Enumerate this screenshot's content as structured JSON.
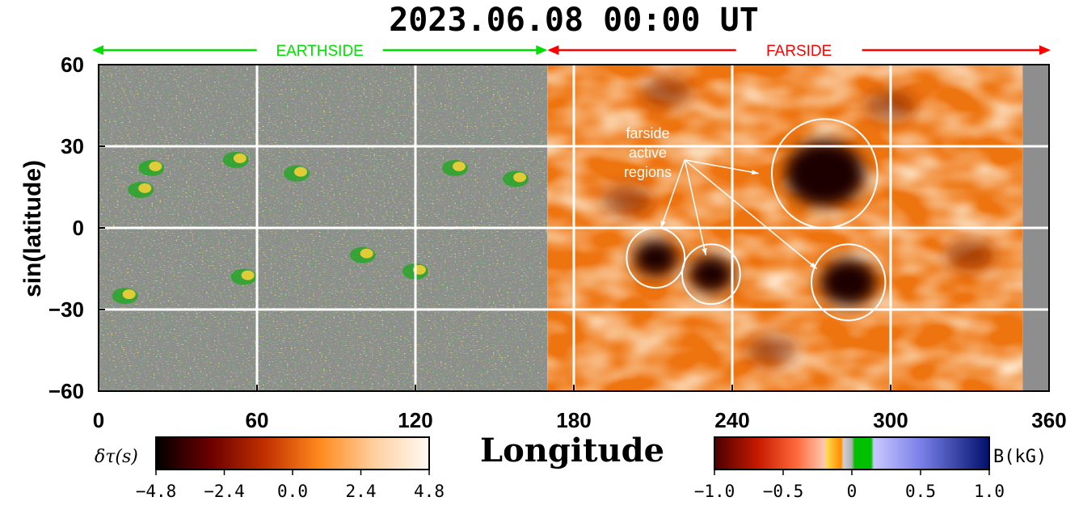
{
  "chart_data": {
    "type": "heatmap",
    "title": "2023.06.08  00:00  UT",
    "xlabel": "Longitude",
    "ylabel": "sin(latitude)",
    "xlim": [
      0,
      360
    ],
    "ylim": [
      -60,
      60
    ],
    "x_ticks": [
      "0",
      "60",
      "120",
      "180",
      "240",
      "300",
      "360"
    ],
    "y_ticks": [
      "60",
      "30",
      "0",
      "−30",
      "−60"
    ],
    "grid_longitudes": [
      60,
      120,
      180,
      240,
      300
    ],
    "grid_latitudes": [
      30,
      0,
      -30
    ],
    "region_labels": {
      "earthside": "EARTHSIDE",
      "farside": "FARSIDE"
    },
    "earthside_range": [
      0,
      170
    ],
    "farside_range": [
      170,
      350
    ],
    "annotation": {
      "lines": [
        "farside",
        "active",
        "regions"
      ]
    },
    "farside_active_regions": [
      {
        "lon": 275,
        "lat": 20,
        "r": 20
      },
      {
        "lon": 211,
        "lat": -11,
        "r": 11
      },
      {
        "lon": 232,
        "lat": -17,
        "r": 11
      },
      {
        "lon": 284,
        "lat": -20,
        "r": 14
      }
    ],
    "colorbars": [
      {
        "label": "δτ(s)",
        "ticks": [
          "−4.8",
          "−2.4",
          "0.0",
          "2.4",
          "4.8"
        ],
        "range": [
          -4.8,
          4.8
        ],
        "colors": [
          "#000000",
          "#6b0000",
          "#c23000",
          "#ff8a1e",
          "#ffd0a0",
          "#fffaf4"
        ]
      },
      {
        "label": "B(kG)",
        "ticks": [
          "−1.0",
          "−0.5",
          "0",
          "0.5",
          "1.0"
        ],
        "range": [
          -1.0,
          1.0
        ]
      }
    ]
  },
  "colors": {
    "earthside": "#00e000",
    "farside": "#ff0000",
    "grid": "#ffffff",
    "magnetogram_bg": "#8e8e8e",
    "farside_bg": "#ee7410"
  }
}
